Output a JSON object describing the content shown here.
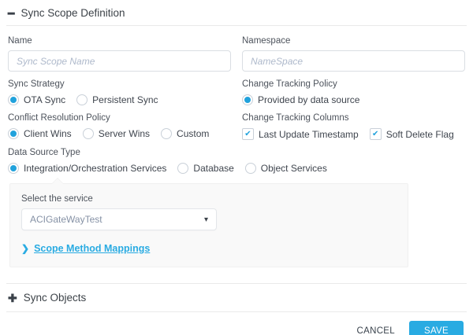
{
  "accent_color": "#29abe2",
  "panel_bg": "#f9f9f9",
  "scope_section": {
    "title": "Sync Scope Definition",
    "collapse_icon": "minus-icon"
  },
  "fields": {
    "name": {
      "label": "Name",
      "placeholder": "Sync Scope Name",
      "value": ""
    },
    "namespace": {
      "label": "Namespace",
      "placeholder": "NameSpace",
      "value": ""
    }
  },
  "sync_strategy": {
    "label": "Sync Strategy",
    "options": [
      {
        "label": "OTA Sync",
        "selected": true
      },
      {
        "label": "Persistent Sync",
        "selected": false
      }
    ]
  },
  "change_tracking_policy": {
    "label": "Change Tracking Policy",
    "options": [
      {
        "label": "Provided by data source",
        "selected": true
      }
    ]
  },
  "conflict_resolution_policy": {
    "label": "Conflict Resolution Policy",
    "options": [
      {
        "label": "Client Wins",
        "selected": true
      },
      {
        "label": "Server Wins",
        "selected": false
      },
      {
        "label": "Custom",
        "selected": false
      }
    ]
  },
  "change_tracking_columns": {
    "label": "Change Tracking Columns",
    "options": [
      {
        "label": "Last Update Timestamp",
        "checked": true
      },
      {
        "label": "Soft Delete Flag",
        "checked": true
      }
    ]
  },
  "data_source_type": {
    "label": "Data Source Type",
    "options": [
      {
        "label": "Integration/Orchestration Services",
        "selected": true
      },
      {
        "label": "Database",
        "selected": false
      },
      {
        "label": "Object Services",
        "selected": false
      }
    ]
  },
  "service_panel": {
    "label": "Select the service",
    "selected_service": "ACIGateWayTest",
    "caret_icon": "▾",
    "mappings_link": {
      "chevron": "❯",
      "label": "Scope Method Mappings"
    }
  },
  "sync_objects_section": {
    "title": "Sync Objects",
    "expand_icon": "✚"
  },
  "footer": {
    "cancel_label": "CANCEL",
    "save_label": "SAVE"
  }
}
